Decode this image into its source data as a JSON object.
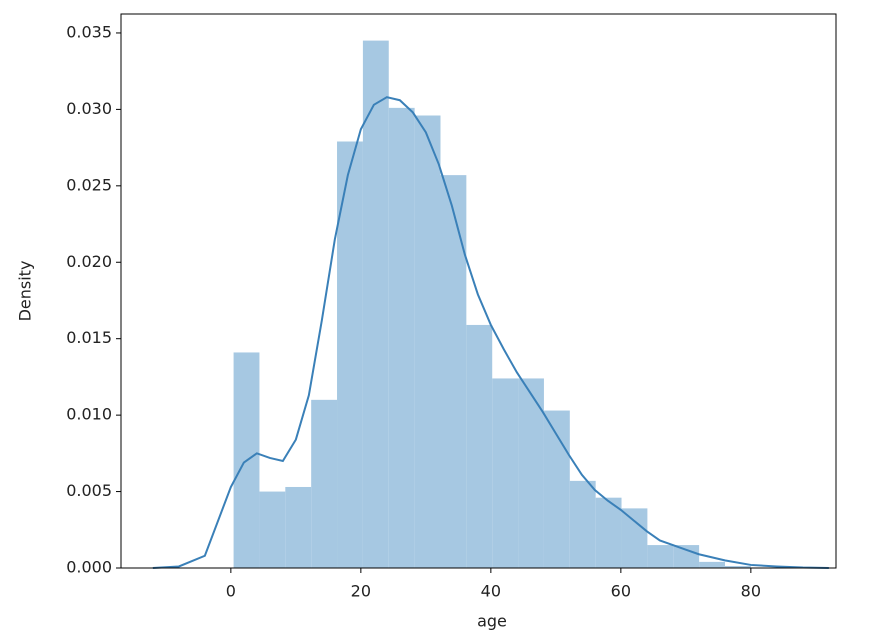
{
  "chart_data": {
    "type": "histogram",
    "xlabel": "age",
    "ylabel": "Density",
    "bins": [
      0.42,
      4.399,
      8.378,
      12.357,
      16.336,
      20.315,
      24.294,
      28.273,
      32.252,
      36.231,
      40.21,
      44.189,
      48.168,
      52.147,
      56.126,
      60.105,
      64.084,
      68.063,
      72.042,
      76.021,
      80
    ],
    "values": [
      0.0141,
      0.005,
      0.0053,
      0.011,
      0.0279,
      0.0345,
      0.0301,
      0.0296,
      0.0257,
      0.0159,
      0.0124,
      0.0124,
      0.0103,
      0.0057,
      0.0046,
      0.0039,
      0.0015,
      0.0015,
      0.0004,
      0.00013
    ],
    "color": "#a6c8e2",
    "kde": {
      "color": "#3a80b8",
      "x": [
        -12,
        -8,
        -4,
        0,
        2,
        4,
        6,
        8,
        10,
        12,
        14,
        16,
        18,
        20,
        22,
        24,
        26,
        28,
        30,
        32,
        34,
        36,
        38,
        40,
        42,
        44,
        46,
        48,
        50,
        52,
        54,
        56,
        58,
        60,
        62,
        64,
        66,
        68,
        70,
        72,
        76,
        80,
        84,
        88,
        92
      ],
      "values": [
        0,
        0.0001,
        0.0008,
        0.0053,
        0.0069,
        0.0075,
        0.0072,
        0.007,
        0.0084,
        0.0113,
        0.0162,
        0.0215,
        0.0257,
        0.0287,
        0.0303,
        0.0308,
        0.0306,
        0.0298,
        0.0285,
        0.0264,
        0.0237,
        0.0205,
        0.0179,
        0.0159,
        0.0143,
        0.0128,
        0.0115,
        0.0102,
        0.0088,
        0.0074,
        0.0061,
        0.0051,
        0.0044,
        0.0038,
        0.0031,
        0.0024,
        0.0018,
        0.0015,
        0.0012,
        0.0009,
        0.0005,
        0.0002,
        0.0001,
        3e-05,
        0
      ]
    },
    "xlim": [
      -16.9,
      93.1
    ],
    "ylim": [
      0,
      0.03624
    ],
    "xticks": [
      0,
      20,
      40,
      60,
      80
    ],
    "yticks": [
      {
        "value": 0,
        "label": "0.000"
      },
      {
        "value": 0.005,
        "label": "0.005"
      },
      {
        "value": 0.01,
        "label": "0.010"
      },
      {
        "value": 0.015,
        "label": "0.015"
      },
      {
        "value": 0.02,
        "label": "0.020"
      },
      {
        "value": 0.025,
        "label": "0.025"
      },
      {
        "value": 0.03,
        "label": "0.030"
      },
      {
        "value": 0.035,
        "label": "0.035"
      }
    ]
  }
}
